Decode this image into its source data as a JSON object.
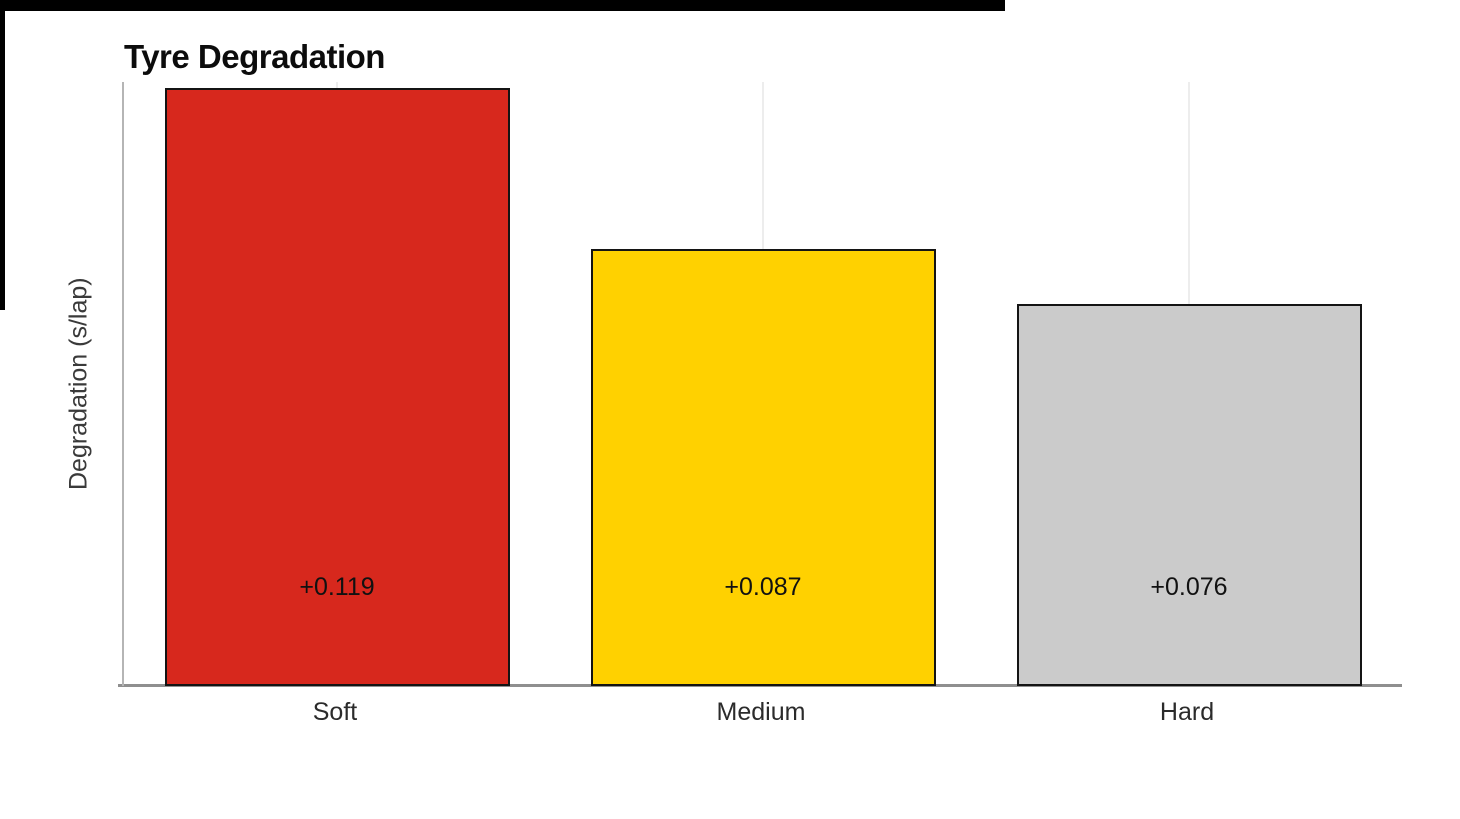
{
  "page": {
    "background_color": "#ffffff"
  },
  "chart_data": {
    "type": "bar",
    "title": "Tyre Degradation",
    "xlabel": "",
    "ylabel": "Degradation (s/lap)",
    "categories": [
      "Soft",
      "Medium",
      "Hard"
    ],
    "values": [
      0.119,
      0.087,
      0.076
    ],
    "bar_labels": [
      "+0.119",
      "+0.087",
      "+0.076"
    ],
    "bar_colors": [
      "#d7281d",
      "#ffd100",
      "#cbcbcb"
    ],
    "bar_border_color": "#141414",
    "ylim": [
      0,
      0.1202
    ],
    "yticks": [],
    "grid": "faint vertical gridline at each bar center",
    "legend_position": "none"
  }
}
